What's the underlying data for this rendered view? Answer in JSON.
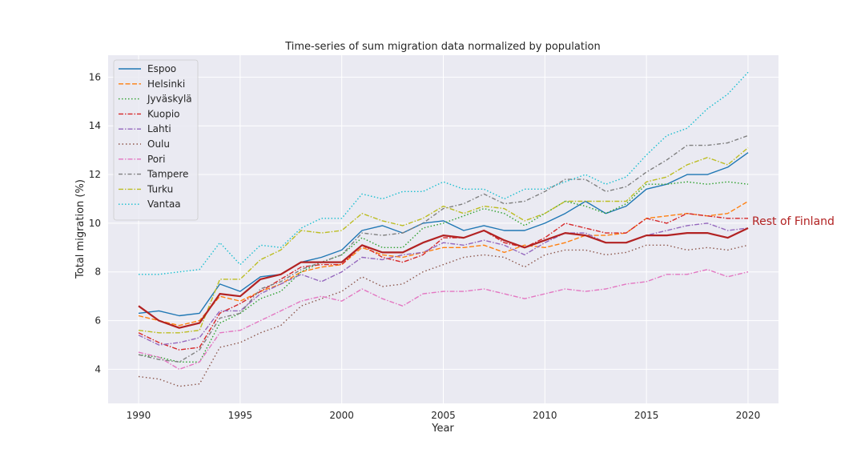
{
  "chart_data": {
    "type": "line",
    "title": "Time-series of sum migration data normalized by population",
    "xlabel": "Year",
    "ylabel": "Total migration (%)",
    "xlim": [
      1988.5,
      2021.5
    ],
    "ylim": [
      2.6,
      16.9
    ],
    "grid": true,
    "legend_position": "top-left",
    "x_ticks": [
      1990,
      1995,
      2000,
      2005,
      2010,
      2015,
      2020
    ],
    "y_ticks": [
      4,
      6,
      8,
      10,
      12,
      14,
      16
    ],
    "x": [
      1990,
      1991,
      1992,
      1993,
      1994,
      1995,
      1996,
      1997,
      1998,
      1999,
      2000,
      2001,
      2002,
      2003,
      2004,
      2005,
      2006,
      2007,
      2008,
      2009,
      2010,
      2011,
      2012,
      2013,
      2014,
      2015,
      2016,
      2017,
      2018,
      2019,
      2020
    ],
    "series": [
      {
        "name": "Espoo",
        "color": "#1f77b4",
        "dash": "solid",
        "values": [
          6.3,
          6.4,
          6.2,
          6.3,
          7.5,
          7.2,
          7.8,
          7.9,
          8.4,
          8.6,
          8.9,
          9.7,
          9.9,
          9.6,
          10.0,
          10.1,
          9.7,
          9.9,
          9.7,
          9.7,
          10.0,
          10.4,
          10.9,
          10.4,
          10.7,
          11.4,
          11.6,
          12.0,
          12.0,
          12.3,
          12.9
        ]
      },
      {
        "name": "Helsinki",
        "color": "#ff7f0e",
        "dash": "dashed",
        "values": [
          6.2,
          6.0,
          5.8,
          6.0,
          7.0,
          6.8,
          7.2,
          7.5,
          8.0,
          8.2,
          8.3,
          9.0,
          8.7,
          8.6,
          8.8,
          9.0,
          9.0,
          9.1,
          8.8,
          9.1,
          9.0,
          9.2,
          9.5,
          9.5,
          9.6,
          10.2,
          10.3,
          10.4,
          10.3,
          10.4,
          10.9
        ]
      },
      {
        "name": "Jyväskylä",
        "color": "#2ca02c",
        "dash": "dotted",
        "values": [
          4.6,
          4.5,
          4.3,
          4.3,
          5.9,
          6.3,
          6.9,
          7.2,
          8.0,
          8.4,
          8.7,
          9.4,
          9.0,
          9.0,
          9.8,
          10.0,
          10.3,
          10.6,
          10.4,
          9.9,
          10.4,
          10.9,
          10.7,
          10.4,
          10.8,
          11.6,
          11.6,
          11.7,
          11.6,
          11.7,
          11.6
        ]
      },
      {
        "name": "Kuopio",
        "color": "#d62728",
        "dash": "dashdot",
        "values": [
          5.5,
          5.1,
          4.8,
          4.9,
          6.3,
          6.7,
          7.2,
          7.7,
          8.2,
          8.3,
          8.3,
          9.1,
          8.6,
          8.4,
          8.7,
          9.4,
          9.4,
          9.7,
          9.2,
          9.0,
          9.4,
          10.0,
          9.8,
          9.6,
          9.6,
          10.2,
          10.0,
          10.4,
          10.3,
          10.2,
          10.2
        ]
      },
      {
        "name": "Lahti",
        "color": "#9467bd",
        "dash": "dashdot",
        "values": [
          5.4,
          5.0,
          5.1,
          5.3,
          6.4,
          6.4,
          7.1,
          7.5,
          7.9,
          7.6,
          8.0,
          8.6,
          8.5,
          8.7,
          8.8,
          9.2,
          9.1,
          9.3,
          9.1,
          8.7,
          9.2,
          9.6,
          9.6,
          9.2,
          9.2,
          9.5,
          9.7,
          9.9,
          10.0,
          9.7,
          9.8
        ]
      },
      {
        "name": "Oulu",
        "color": "#8c564b",
        "dash": "dotted2",
        "values": [
          3.7,
          3.6,
          3.3,
          3.4,
          4.9,
          5.1,
          5.5,
          5.8,
          6.6,
          6.9,
          7.2,
          7.8,
          7.4,
          7.5,
          8.0,
          8.3,
          8.6,
          8.7,
          8.6,
          8.2,
          8.7,
          8.9,
          8.9,
          8.7,
          8.8,
          9.1,
          9.1,
          8.9,
          9.0,
          8.9,
          9.1
        ]
      },
      {
        "name": "Pori",
        "color": "#e377c2",
        "dash": "dashdot",
        "values": [
          4.7,
          4.5,
          4.0,
          4.3,
          5.5,
          5.6,
          6.0,
          6.4,
          6.8,
          7.0,
          6.8,
          7.3,
          6.9,
          6.6,
          7.1,
          7.2,
          7.2,
          7.3,
          7.1,
          6.9,
          7.1,
          7.3,
          7.2,
          7.3,
          7.5,
          7.6,
          7.9,
          7.9,
          8.1,
          7.8,
          8.0
        ]
      },
      {
        "name": "Tampere",
        "color": "#7f7f7f",
        "dash": "dashdot2",
        "values": [
          4.6,
          4.4,
          4.3,
          4.8,
          6.1,
          6.3,
          7.3,
          7.6,
          8.1,
          8.4,
          8.7,
          9.6,
          9.5,
          9.6,
          10.0,
          10.6,
          10.8,
          11.2,
          10.8,
          10.9,
          11.3,
          11.8,
          11.8,
          11.3,
          11.5,
          12.1,
          12.6,
          13.2,
          13.2,
          13.3,
          13.6
        ]
      },
      {
        "name": "Turku",
        "color": "#bcbd22",
        "dash": "dashdot",
        "values": [
          5.6,
          5.5,
          5.5,
          5.6,
          7.7,
          7.7,
          8.5,
          8.9,
          9.7,
          9.6,
          9.7,
          10.4,
          10.1,
          9.9,
          10.2,
          10.7,
          10.4,
          10.7,
          10.6,
          10.1,
          10.4,
          10.9,
          10.9,
          10.9,
          10.9,
          11.7,
          11.9,
          12.4,
          12.7,
          12.4,
          13.1
        ]
      },
      {
        "name": "Vantaa",
        "color": "#17becf",
        "dash": "dotted",
        "values": [
          7.9,
          7.9,
          8.0,
          8.1,
          9.2,
          8.3,
          9.1,
          9.0,
          9.8,
          10.2,
          10.2,
          11.2,
          11.0,
          11.3,
          11.3,
          11.7,
          11.4,
          11.4,
          11.0,
          11.4,
          11.4,
          11.7,
          12.0,
          11.6,
          11.9,
          12.8,
          13.6,
          13.9,
          14.7,
          15.3,
          16.2
        ]
      },
      {
        "name": "Rest of Finland",
        "color": "#b22222",
        "dash": "solid-thick",
        "values": [
          6.6,
          6.0,
          5.7,
          5.9,
          7.1,
          7.0,
          7.7,
          7.9,
          8.4,
          8.4,
          8.4,
          9.1,
          8.8,
          8.8,
          9.2,
          9.5,
          9.4,
          9.7,
          9.3,
          9.0,
          9.3,
          9.6,
          9.5,
          9.2,
          9.2,
          9.5,
          9.5,
          9.6,
          9.6,
          9.4,
          9.8
        ]
      }
    ],
    "annotation": {
      "text": "Rest of Finland",
      "color": "#b22222"
    }
  }
}
